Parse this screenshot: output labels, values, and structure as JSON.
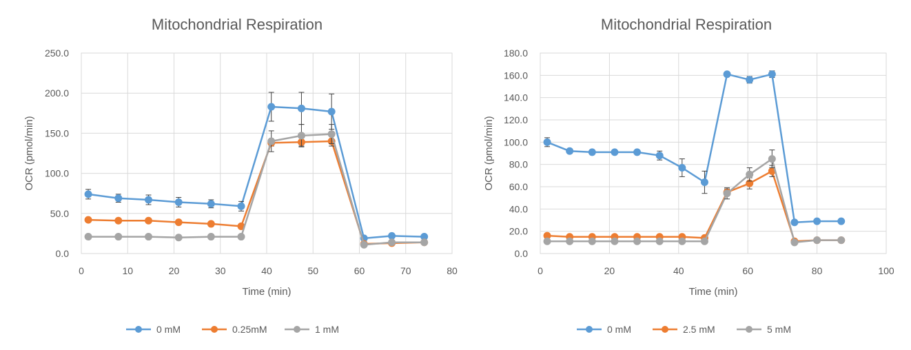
{
  "chart_data": [
    {
      "type": "line",
      "title": "Mitochondrial Respiration",
      "xlabel": "Time (min)",
      "ylabel": "OCR (pmol/min)",
      "xlim": [
        0,
        80
      ],
      "ylim": [
        0,
        250
      ],
      "xticks": [
        "0",
        "10",
        "20",
        "30",
        "40",
        "50",
        "60",
        "70",
        "80"
      ],
      "yticks": [
        "0.0",
        "50.0",
        "100.0",
        "150.0",
        "200.0",
        "250.0"
      ],
      "legend_position": "bottom",
      "series": [
        {
          "name": "0 mM",
          "color": "#5b9bd5",
          "x": [
            1.5,
            8,
            14.5,
            21,
            28,
            34.5,
            41,
            47.5,
            54,
            61,
            67,
            74
          ],
          "y": [
            74,
            69,
            67,
            64,
            62,
            59,
            183,
            181,
            177,
            19,
            22,
            21
          ],
          "err": [
            6,
            5,
            6,
            6,
            5,
            6,
            18,
            20,
            22,
            2,
            2,
            2
          ]
        },
        {
          "name": "0.25mM",
          "color": "#ed7d31",
          "x": [
            1.5,
            8,
            14.5,
            21,
            28,
            34.5,
            41,
            47.5,
            54,
            61,
            67,
            74
          ],
          "y": [
            42,
            41,
            41,
            39,
            37,
            34,
            138,
            139,
            140,
            12,
            13,
            14
          ],
          "err": [
            2,
            2,
            2,
            2,
            2,
            2,
            4,
            5,
            6,
            1,
            1,
            1
          ]
        },
        {
          "name": "1 mM",
          "color": "#a5a5a5",
          "x": [
            1.5,
            8,
            14.5,
            21,
            28,
            34.5,
            41,
            47.5,
            54,
            61,
            67,
            74
          ],
          "y": [
            21,
            21,
            21,
            20,
            21,
            21,
            140,
            147,
            149,
            11,
            14,
            14
          ],
          "err": [
            1,
            1,
            1,
            1,
            1,
            1,
            13,
            14,
            12,
            1,
            1,
            1
          ]
        }
      ]
    },
    {
      "type": "line",
      "title": "Mitochondrial Respiration",
      "xlabel": "Time (min)",
      "ylabel": "OCR (pmol/min)",
      "xlim": [
        0,
        100
      ],
      "ylim": [
        0,
        180
      ],
      "xticks": [
        "0",
        "20",
        "40",
        "60",
        "80",
        "100"
      ],
      "yticks": [
        "0.0",
        "20.0",
        "40.0",
        "60.0",
        "80.0",
        "100.0",
        "120.0",
        "140.0",
        "160.0",
        "180.0"
      ],
      "legend_position": "bottom",
      "series": [
        {
          "name": "0 mM",
          "color": "#5b9bd5",
          "x": [
            2,
            8.5,
            15,
            21.5,
            28,
            34.5,
            41,
            47.5,
            54,
            60.5,
            67,
            73.5,
            80,
            87
          ],
          "y": [
            100,
            92,
            91,
            91,
            91,
            88,
            77,
            64,
            161,
            156,
            161,
            28,
            29,
            29
          ],
          "err": [
            4,
            2,
            2,
            1,
            2,
            4,
            8,
            10,
            1,
            3,
            3,
            1,
            1,
            1
          ]
        },
        {
          "name": "2.5 mM",
          "color": "#ed7d31",
          "x": [
            2,
            8.5,
            15,
            21.5,
            28,
            34.5,
            41,
            47.5,
            54,
            60.5,
            67,
            73.5,
            80,
            87
          ],
          "y": [
            16,
            15,
            15,
            15,
            15,
            15,
            15,
            14,
            55,
            63,
            74,
            11,
            12,
            12
          ],
          "err": [
            1,
            1,
            1,
            1,
            1,
            1,
            1,
            1,
            3,
            5,
            5,
            1,
            1,
            1
          ]
        },
        {
          "name": "5 mM",
          "color": "#a5a5a5",
          "x": [
            2,
            8.5,
            15,
            21.5,
            28,
            34.5,
            41,
            47.5,
            54,
            60.5,
            67,
            73.5,
            80,
            87
          ],
          "y": [
            11,
            11,
            11,
            11,
            11,
            11,
            11,
            11,
            54,
            71,
            85,
            10,
            12,
            12
          ],
          "err": [
            1,
            1,
            1,
            1,
            1,
            1,
            1,
            1,
            5,
            6,
            8,
            1,
            1,
            1
          ]
        }
      ]
    }
  ]
}
